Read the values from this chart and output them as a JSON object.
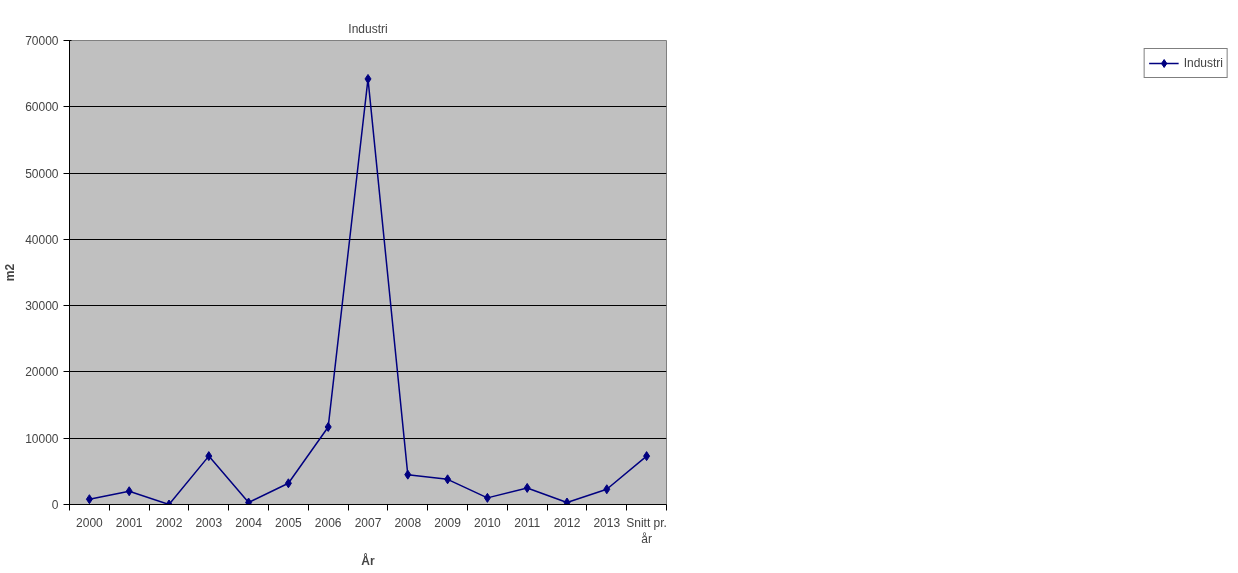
{
  "chart_data": {
    "type": "line",
    "title": "Industri",
    "xlabel": "År",
    "ylabel": "m2",
    "categories": [
      "2000",
      "2001",
      "2002",
      "2003",
      "2004",
      "2005",
      "2006",
      "2007",
      "2008",
      "2009",
      "2010",
      "2011",
      "2012",
      "2013",
      "Snitt pr. år"
    ],
    "series": [
      {
        "name": "Industri",
        "color": "#000080",
        "values": [
          800,
          2000,
          0,
          7300,
          300,
          3200,
          11700,
          64200,
          4500,
          3800,
          1000,
          2500,
          300,
          2300,
          7300
        ]
      }
    ],
    "ylim": [
      0,
      70000
    ],
    "yticks": [
      0,
      10000,
      20000,
      30000,
      40000,
      50000,
      60000,
      70000
    ],
    "grid": "y",
    "legend": "right",
    "marker": "diamond",
    "line_style": "solid"
  }
}
